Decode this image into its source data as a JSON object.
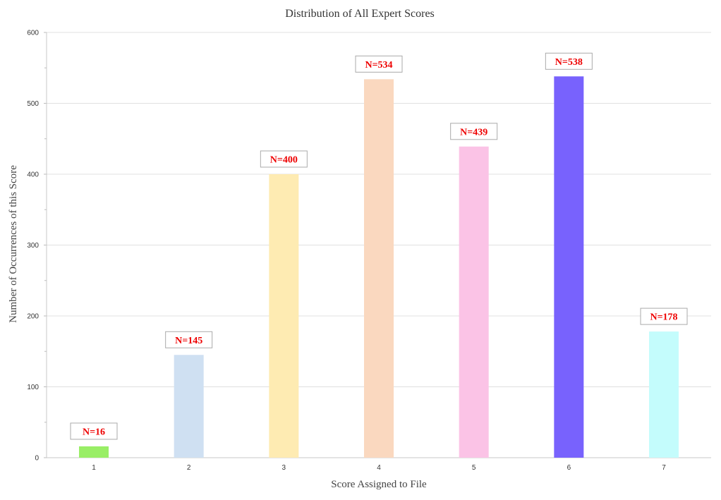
{
  "chart_data": {
    "type": "bar",
    "title": "Distribution of All Expert Scores",
    "xlabel": "Score Assigned to File",
    "ylabel": "Number of Occurrences of this Score",
    "categories": [
      "1",
      "2",
      "3",
      "4",
      "5",
      "6",
      "7"
    ],
    "values": [
      16,
      145,
      400,
      534,
      439,
      538,
      178
    ],
    "data_labels": [
      "N=16",
      "N=145",
      "N=400",
      "N=534",
      "N=439",
      "N=538",
      "N=178"
    ],
    "colors": [
      "#99ee66",
      "#cfe0f2",
      "#feebb2",
      "#fad8bf",
      "#fbc3e6",
      "#7862fd",
      "#c4fcfc"
    ],
    "label_color": "#ee0000",
    "ylim": [
      0,
      600
    ],
    "yticks": [
      0,
      100,
      200,
      300,
      400,
      500,
      600
    ],
    "ytick_labels": [
      "0",
      "100",
      "200",
      "300",
      "400",
      "500",
      "600"
    ],
    "grid": true,
    "legend": "none"
  }
}
